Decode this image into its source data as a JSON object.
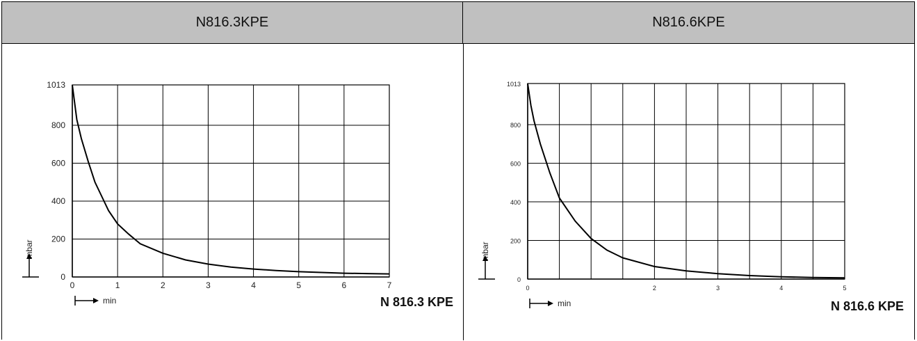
{
  "headers": {
    "left": "N816.3KPE",
    "right": "N816.6KPE"
  },
  "chart_data": [
    {
      "type": "line",
      "title": "",
      "xlabel": "min",
      "ylabel": "mbar",
      "xlim": [
        0,
        7
      ],
      "ylim": [
        0,
        1013
      ],
      "x_ticks": [
        "0",
        "1",
        "2",
        "3",
        "4",
        "5",
        "6",
        "7"
      ],
      "y_ticks": [
        "0",
        "200",
        "400",
        "600",
        "800",
        "1013"
      ],
      "grid": true,
      "model_label": "N 816.3 KPE",
      "series": [
        {
          "x": [
            0,
            0.1,
            0.2,
            0.35,
            0.5,
            0.7,
            0.8,
            1.0,
            1.25,
            1.5,
            2.0,
            2.5,
            3.0,
            3.5,
            4.0,
            4.5,
            5.0,
            5.5,
            6.0,
            6.5,
            7.0
          ],
          "values": [
            1013,
            830,
            730,
            610,
            500,
            400,
            350,
            280,
            225,
            175,
            125,
            90,
            68,
            52,
            42,
            34,
            28,
            24,
            20,
            18,
            16
          ]
        }
      ]
    },
    {
      "type": "line",
      "title": "",
      "xlabel": "min",
      "ylabel": "mbar",
      "xlim": [
        0,
        5
      ],
      "ylim": [
        0,
        1013
      ],
      "x_ticks": [
        "0",
        "2",
        "3",
        "4",
        "5"
      ],
      "x_tick_values": [
        0,
        2,
        3,
        4,
        5
      ],
      "y_ticks": [
        "0",
        "200",
        "400",
        "600",
        "800",
        "1013"
      ],
      "grid": true,
      "model_label": "N 816.6 KPE",
      "series": [
        {
          "x": [
            0,
            0.05,
            0.1,
            0.2,
            0.35,
            0.5,
            0.75,
            1.0,
            1.25,
            1.5,
            2.0,
            2.5,
            3.0,
            3.5,
            4.0,
            4.5,
            5.0
          ],
          "values": [
            1013,
            900,
            820,
            700,
            550,
            420,
            300,
            210,
            150,
            110,
            65,
            42,
            28,
            18,
            12,
            8,
            6
          ]
        }
      ]
    }
  ]
}
